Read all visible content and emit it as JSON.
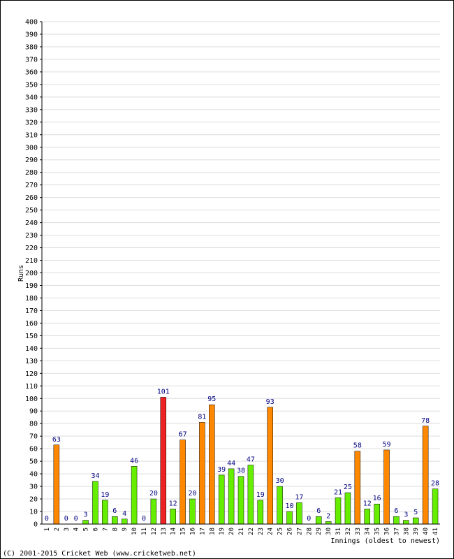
{
  "chart_data": {
    "type": "bar",
    "ylabel": "Runs",
    "xlabel": "Innings (oldest to newest)",
    "ylim": [
      0,
      400
    ],
    "y_tick_step": 10,
    "grid": true,
    "categories": [
      "1",
      "2",
      "3",
      "4",
      "5",
      "6",
      "7",
      "8",
      "9",
      "10",
      "11",
      "12",
      "13",
      "14",
      "15",
      "16",
      "17",
      "18",
      "19",
      "20",
      "21",
      "22",
      "23",
      "24",
      "25",
      "26",
      "27",
      "28",
      "29",
      "30",
      "31",
      "32",
      "33",
      "34",
      "35",
      "36",
      "37",
      "38",
      "39",
      "40",
      "41"
    ],
    "values": [
      0,
      63,
      0,
      0,
      3,
      34,
      19,
      6,
      4,
      46,
      0,
      20,
      101,
      12,
      67,
      20,
      81,
      95,
      39,
      44,
      38,
      47,
      19,
      93,
      30,
      10,
      17,
      0,
      6,
      2,
      21,
      25,
      58,
      12,
      16,
      59,
      6,
      3,
      5,
      78,
      28
    ],
    "colors": {
      "under_50": "#66ee00",
      "fifty": "#ff8800",
      "hundred": "#ee2222",
      "value_label": "#000080",
      "grid": "#dddddd"
    }
  },
  "footer": {
    "copyright": "(C) 2001-2015 Cricket Web (www.cricketweb.net)"
  }
}
